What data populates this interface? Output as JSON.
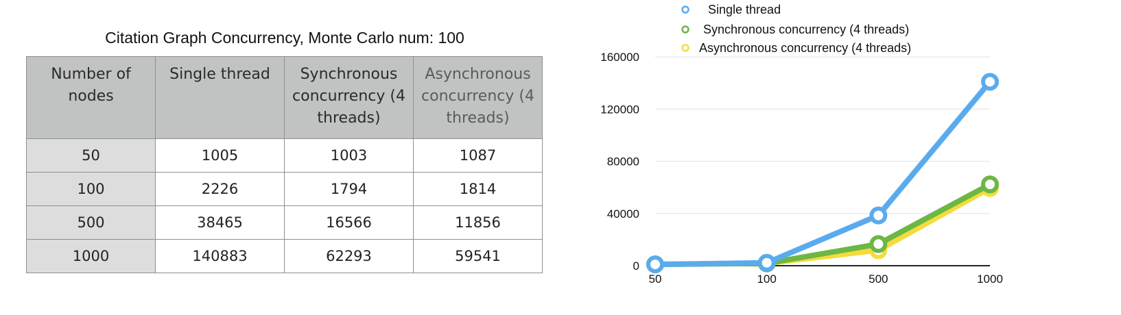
{
  "table": {
    "title": "Citation Graph Concurrency, Monte Carlo num: 100",
    "headers": [
      "Number of nodes",
      "Single thread",
      "Synchronous concurrency (4 threads)",
      "Asynchronous concurrency (4 threads)"
    ],
    "rows": [
      [
        "50",
        "1005",
        "1003",
        "1087"
      ],
      [
        "100",
        "2226",
        "1794",
        "1814"
      ],
      [
        "500",
        "38465",
        "16566",
        "11856"
      ],
      [
        "1000",
        "140883",
        "62293",
        "59541"
      ]
    ]
  },
  "chart_data": {
    "type": "line",
    "categories": [
      "50",
      "100",
      "500",
      "1000"
    ],
    "series": [
      {
        "name": "Single thread",
        "values": [
          1005,
          2226,
          38465,
          140883
        ],
        "color": "#5aabee"
      },
      {
        "name": "Synchronous concurrency (4 threads)",
        "values": [
          1003,
          1794,
          16566,
          62293
        ],
        "color": "#6db744"
      },
      {
        "name": "Asynchronous concurrency (4 threads)",
        "values": [
          1087,
          1814,
          11856,
          59541
        ],
        "color": "#f5dc3d"
      }
    ],
    "yticks": [
      "0",
      "40000",
      "80000",
      "120000",
      "160000"
    ],
    "ylim": [
      0,
      160000
    ],
    "grid": true,
    "legend": "top"
  }
}
